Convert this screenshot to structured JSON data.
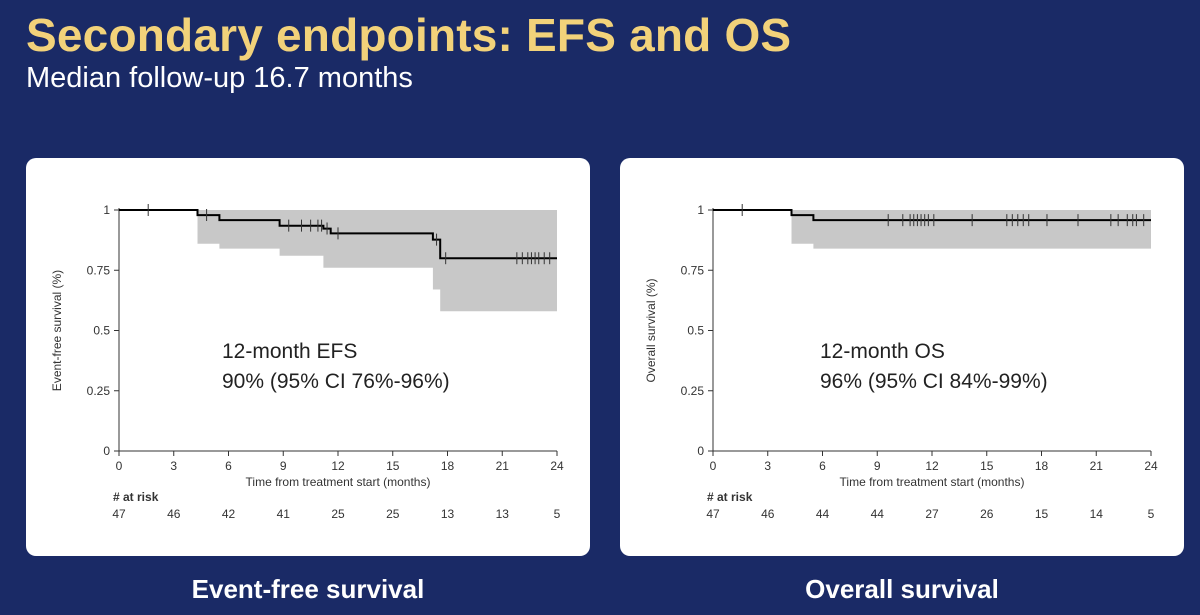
{
  "slide": {
    "title": "Secondary endpoints: EFS and OS",
    "subtitle": "Median follow-up 16.7 months"
  },
  "panels": [
    {
      "caption": "Event-free survival"
    },
    {
      "caption": "Overall survival"
    }
  ],
  "colors": {
    "background": "#1a2a66",
    "title": "#f2d27a",
    "ci_band": "#c8c8c8",
    "curve": "#000000"
  },
  "chart_data": [
    {
      "type": "line",
      "style": "kaplan-meier step curve with shaded 95% CI band and censor ticks",
      "xlabel": "Time from treatment start (months)",
      "ylabel": "Event-free survival (%)",
      "xlim": [
        0,
        24
      ],
      "ylim": [
        0,
        1
      ],
      "xticks": [
        0,
        3,
        6,
        9,
        12,
        15,
        18,
        21,
        24
      ],
      "yticks": [
        0,
        0.25,
        0.5,
        0.75,
        1
      ],
      "ytick_labels": [
        "0",
        "0.25",
        "0.5",
        "0.75",
        "1"
      ],
      "grid": false,
      "curve": [
        [
          0,
          1
        ],
        [
          4.3,
          1
        ],
        [
          4.3,
          0.979
        ],
        [
          5.5,
          0.979
        ],
        [
          5.5,
          0.958
        ],
        [
          8.8,
          0.958
        ],
        [
          8.8,
          0.935
        ],
        [
          11.2,
          0.935
        ],
        [
          11.2,
          0.923
        ],
        [
          11.6,
          0.923
        ],
        [
          11.6,
          0.903
        ],
        [
          17.2,
          0.903
        ],
        [
          17.2,
          0.877
        ],
        [
          17.6,
          0.877
        ],
        [
          17.6,
          0.8
        ],
        [
          24,
          0.8
        ]
      ],
      "ci_upper": [
        [
          0,
          1
        ],
        [
          24,
          1
        ]
      ],
      "ci_lower": [
        [
          0,
          1
        ],
        [
          4.3,
          1
        ],
        [
          4.3,
          0.86
        ],
        [
          5.5,
          0.86
        ],
        [
          5.5,
          0.84
        ],
        [
          8.8,
          0.84
        ],
        [
          8.8,
          0.81
        ],
        [
          11.2,
          0.81
        ],
        [
          11.2,
          0.76
        ],
        [
          17.2,
          0.76
        ],
        [
          17.2,
          0.67
        ],
        [
          17.6,
          0.67
        ],
        [
          17.6,
          0.58
        ],
        [
          24,
          0.58
        ]
      ],
      "censor_times": [
        1.6,
        4.8,
        9.3,
        10.0,
        10.5,
        10.9,
        11.1,
        11.4,
        12.0,
        17.4,
        17.9,
        21.8,
        22.1,
        22.4,
        22.6,
        22.8,
        23.0,
        23.3,
        23.6
      ],
      "annotation": [
        "12-month EFS",
        "90% (95% CI 76%-96%)"
      ],
      "at_risk": {
        "title": "# at risk",
        "times": [
          0,
          3,
          6,
          9,
          12,
          15,
          18,
          21,
          24
        ],
        "counts": [
          47,
          46,
          42,
          41,
          25,
          25,
          13,
          13,
          5
        ]
      }
    },
    {
      "type": "line",
      "style": "kaplan-meier step curve with shaded 95% CI band and censor ticks",
      "xlabel": "Time from treatment start (months)",
      "ylabel": "Overall survival (%)",
      "xlim": [
        0,
        24
      ],
      "ylim": [
        0,
        1
      ],
      "xticks": [
        0,
        3,
        6,
        9,
        12,
        15,
        18,
        21,
        24
      ],
      "yticks": [
        0,
        0.25,
        0.5,
        0.75,
        1
      ],
      "ytick_labels": [
        "0",
        "0.25",
        "0.5",
        "0.75",
        "1"
      ],
      "grid": false,
      "curve": [
        [
          0,
          1
        ],
        [
          4.3,
          1
        ],
        [
          4.3,
          0.979
        ],
        [
          5.5,
          0.979
        ],
        [
          5.5,
          0.958
        ],
        [
          24,
          0.958
        ]
      ],
      "ci_upper": [
        [
          0,
          1
        ],
        [
          24,
          1
        ]
      ],
      "ci_lower": [
        [
          0,
          1
        ],
        [
          4.3,
          1
        ],
        [
          4.3,
          0.86
        ],
        [
          5.5,
          0.86
        ],
        [
          5.5,
          0.84
        ],
        [
          24,
          0.84
        ]
      ],
      "censor_times": [
        1.6,
        9.6,
        10.4,
        10.8,
        11.0,
        11.2,
        11.4,
        11.6,
        11.8,
        12.1,
        14.2,
        16.1,
        16.4,
        16.7,
        17.0,
        17.3,
        18.3,
        20.0,
        21.8,
        22.2,
        22.7,
        23.0,
        23.2,
        23.6
      ],
      "annotation": [
        "12-month OS",
        "96% (95% CI 84%-99%)"
      ],
      "at_risk": {
        "title": "# at risk",
        "times": [
          0,
          3,
          6,
          9,
          12,
          15,
          18,
          21,
          24
        ],
        "counts": [
          47,
          46,
          44,
          44,
          27,
          26,
          15,
          14,
          5
        ]
      }
    }
  ]
}
